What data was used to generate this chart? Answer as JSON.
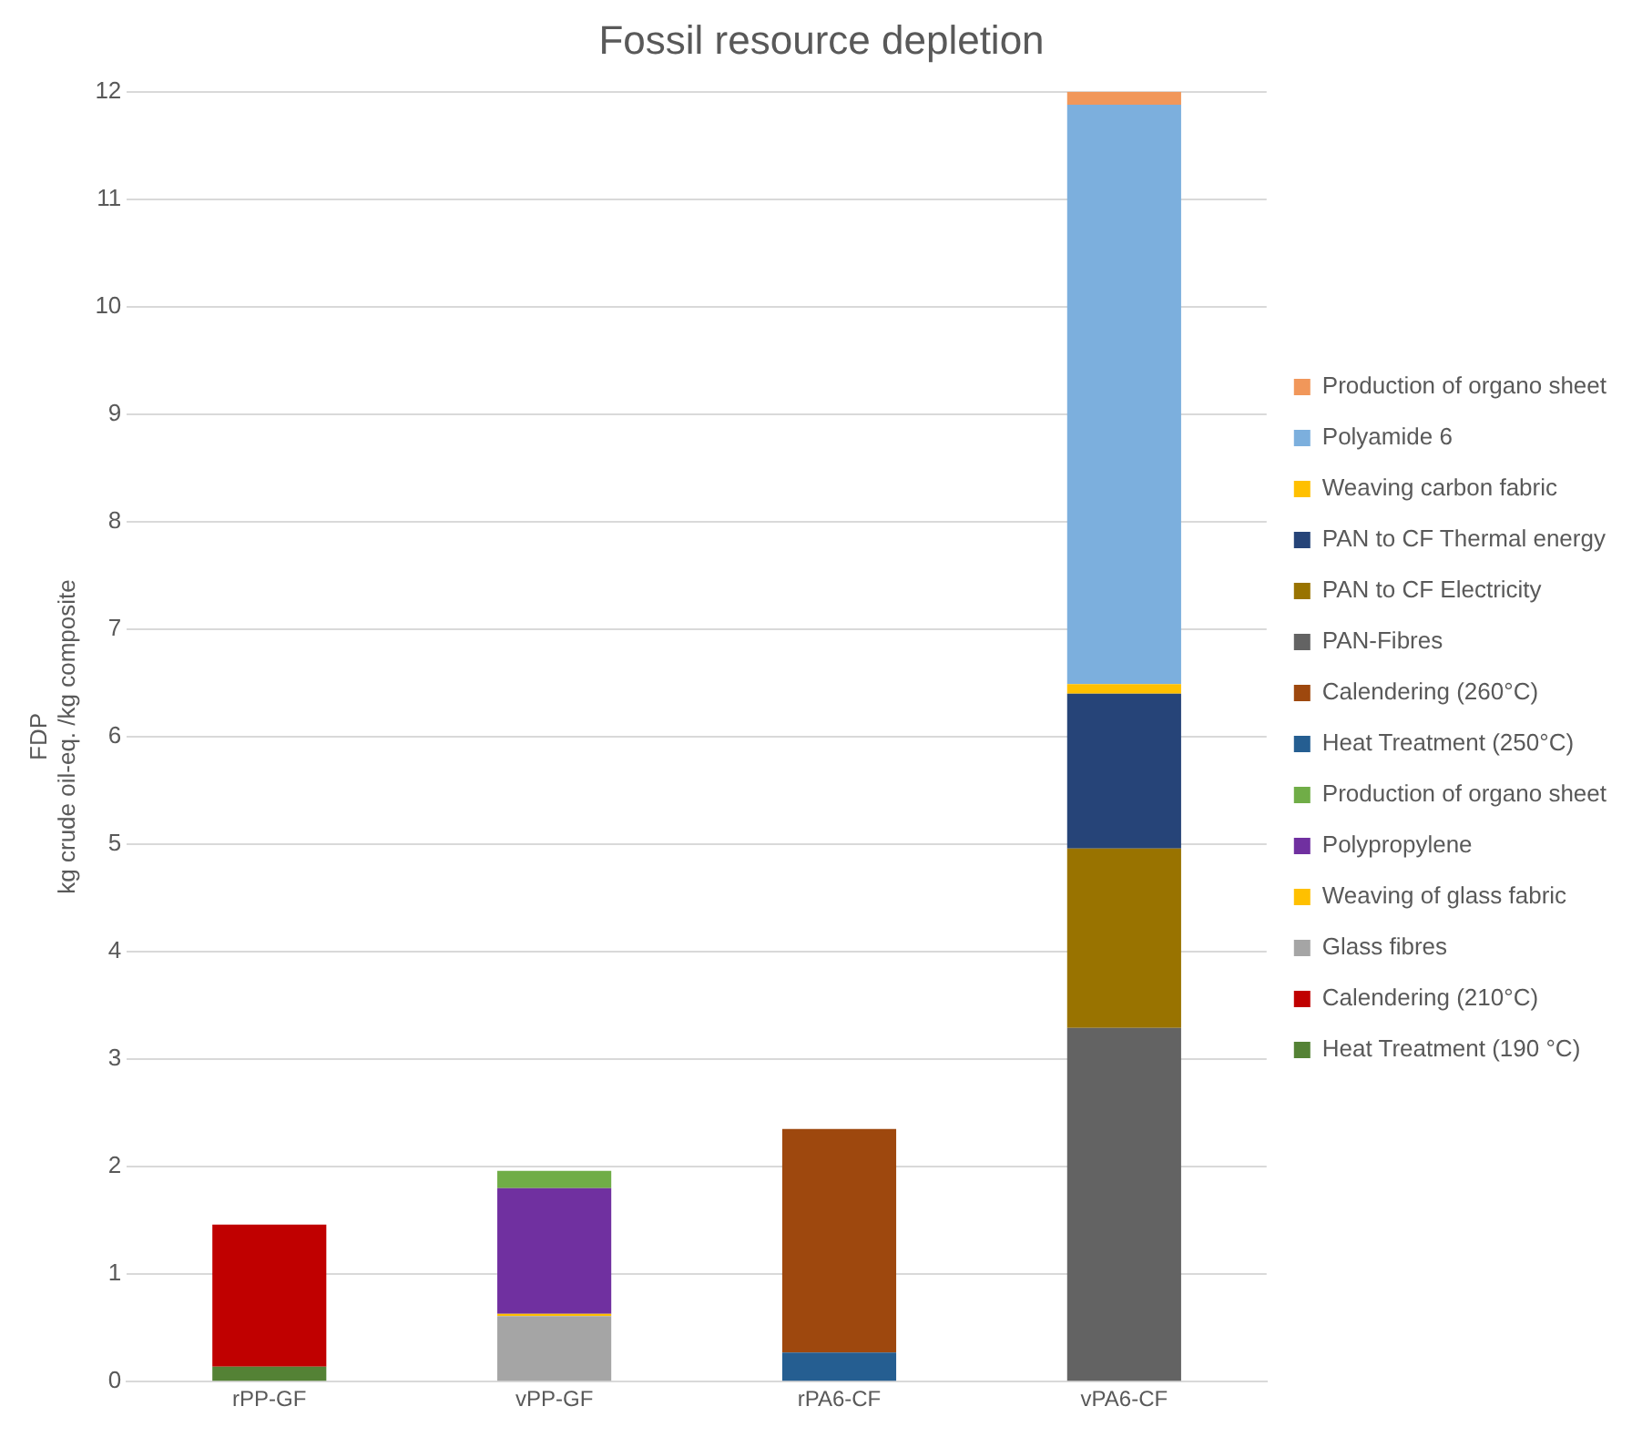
{
  "chart_data": {
    "type": "bar",
    "title": "Fossil resource depletion",
    "ylabel": "FDP\nkg crude oil-eq. /kg composite",
    "categories": [
      "rPP-GF",
      "vPP-GF",
      "rPA6-CF",
      "vPA6-CF"
    ],
    "stacked": true,
    "ylim": [
      0,
      12
    ],
    "yticks": [
      0,
      1,
      2,
      3,
      4,
      5,
      6,
      7,
      8,
      9,
      10,
      11,
      12
    ],
    "grid": "y",
    "legend": "right",
    "series": [
      {
        "name": "Heat Treatment (190 °C)",
        "color": "#548235",
        "values": [
          0.14,
          null,
          null,
          null
        ]
      },
      {
        "name": "Calendering (210°C)",
        "color": "#c00000",
        "values": [
          1.32,
          null,
          null,
          null
        ]
      },
      {
        "name": "Glass fibres",
        "color": "#a5a5a5",
        "values": [
          null,
          0.61,
          null,
          null
        ]
      },
      {
        "name": "Weaving of glass fabric",
        "color": "#ffc000",
        "values": [
          null,
          0.02,
          null,
          null
        ]
      },
      {
        "name": "Polypropylene",
        "color": "#7030a0",
        "values": [
          null,
          1.17,
          null,
          null
        ]
      },
      {
        "name": "Production of organo sheet",
        "color": "#70ad47",
        "values": [
          null,
          0.16,
          null,
          null
        ]
      },
      {
        "name": "Heat Treatment (250°C)",
        "color": "#255e91",
        "values": [
          null,
          null,
          0.27,
          null
        ]
      },
      {
        "name": "Calendering (260°C)",
        "color": "#9e480e",
        "values": [
          null,
          null,
          2.08,
          null
        ]
      },
      {
        "name": "PAN-Fibres",
        "color": "#636363",
        "values": [
          null,
          null,
          null,
          3.29
        ]
      },
      {
        "name": "PAN to CF Electricity",
        "color": "#997300",
        "values": [
          null,
          null,
          null,
          1.67
        ]
      },
      {
        "name": "PAN to CF Thermal energy",
        "color": "#264478",
        "values": [
          null,
          null,
          null,
          1.44
        ]
      },
      {
        "name": "Weaving carbon fabric",
        "color": "#ffc000",
        "values": [
          null,
          null,
          null,
          0.09
        ]
      },
      {
        "name": "Polyamide 6",
        "color": "#7cafdd",
        "values": [
          null,
          null,
          null,
          5.39
        ]
      },
      {
        "name": "Production of organo sheet",
        "color": "#f1975a",
        "values": [
          null,
          null,
          null,
          0.12
        ]
      }
    ]
  }
}
